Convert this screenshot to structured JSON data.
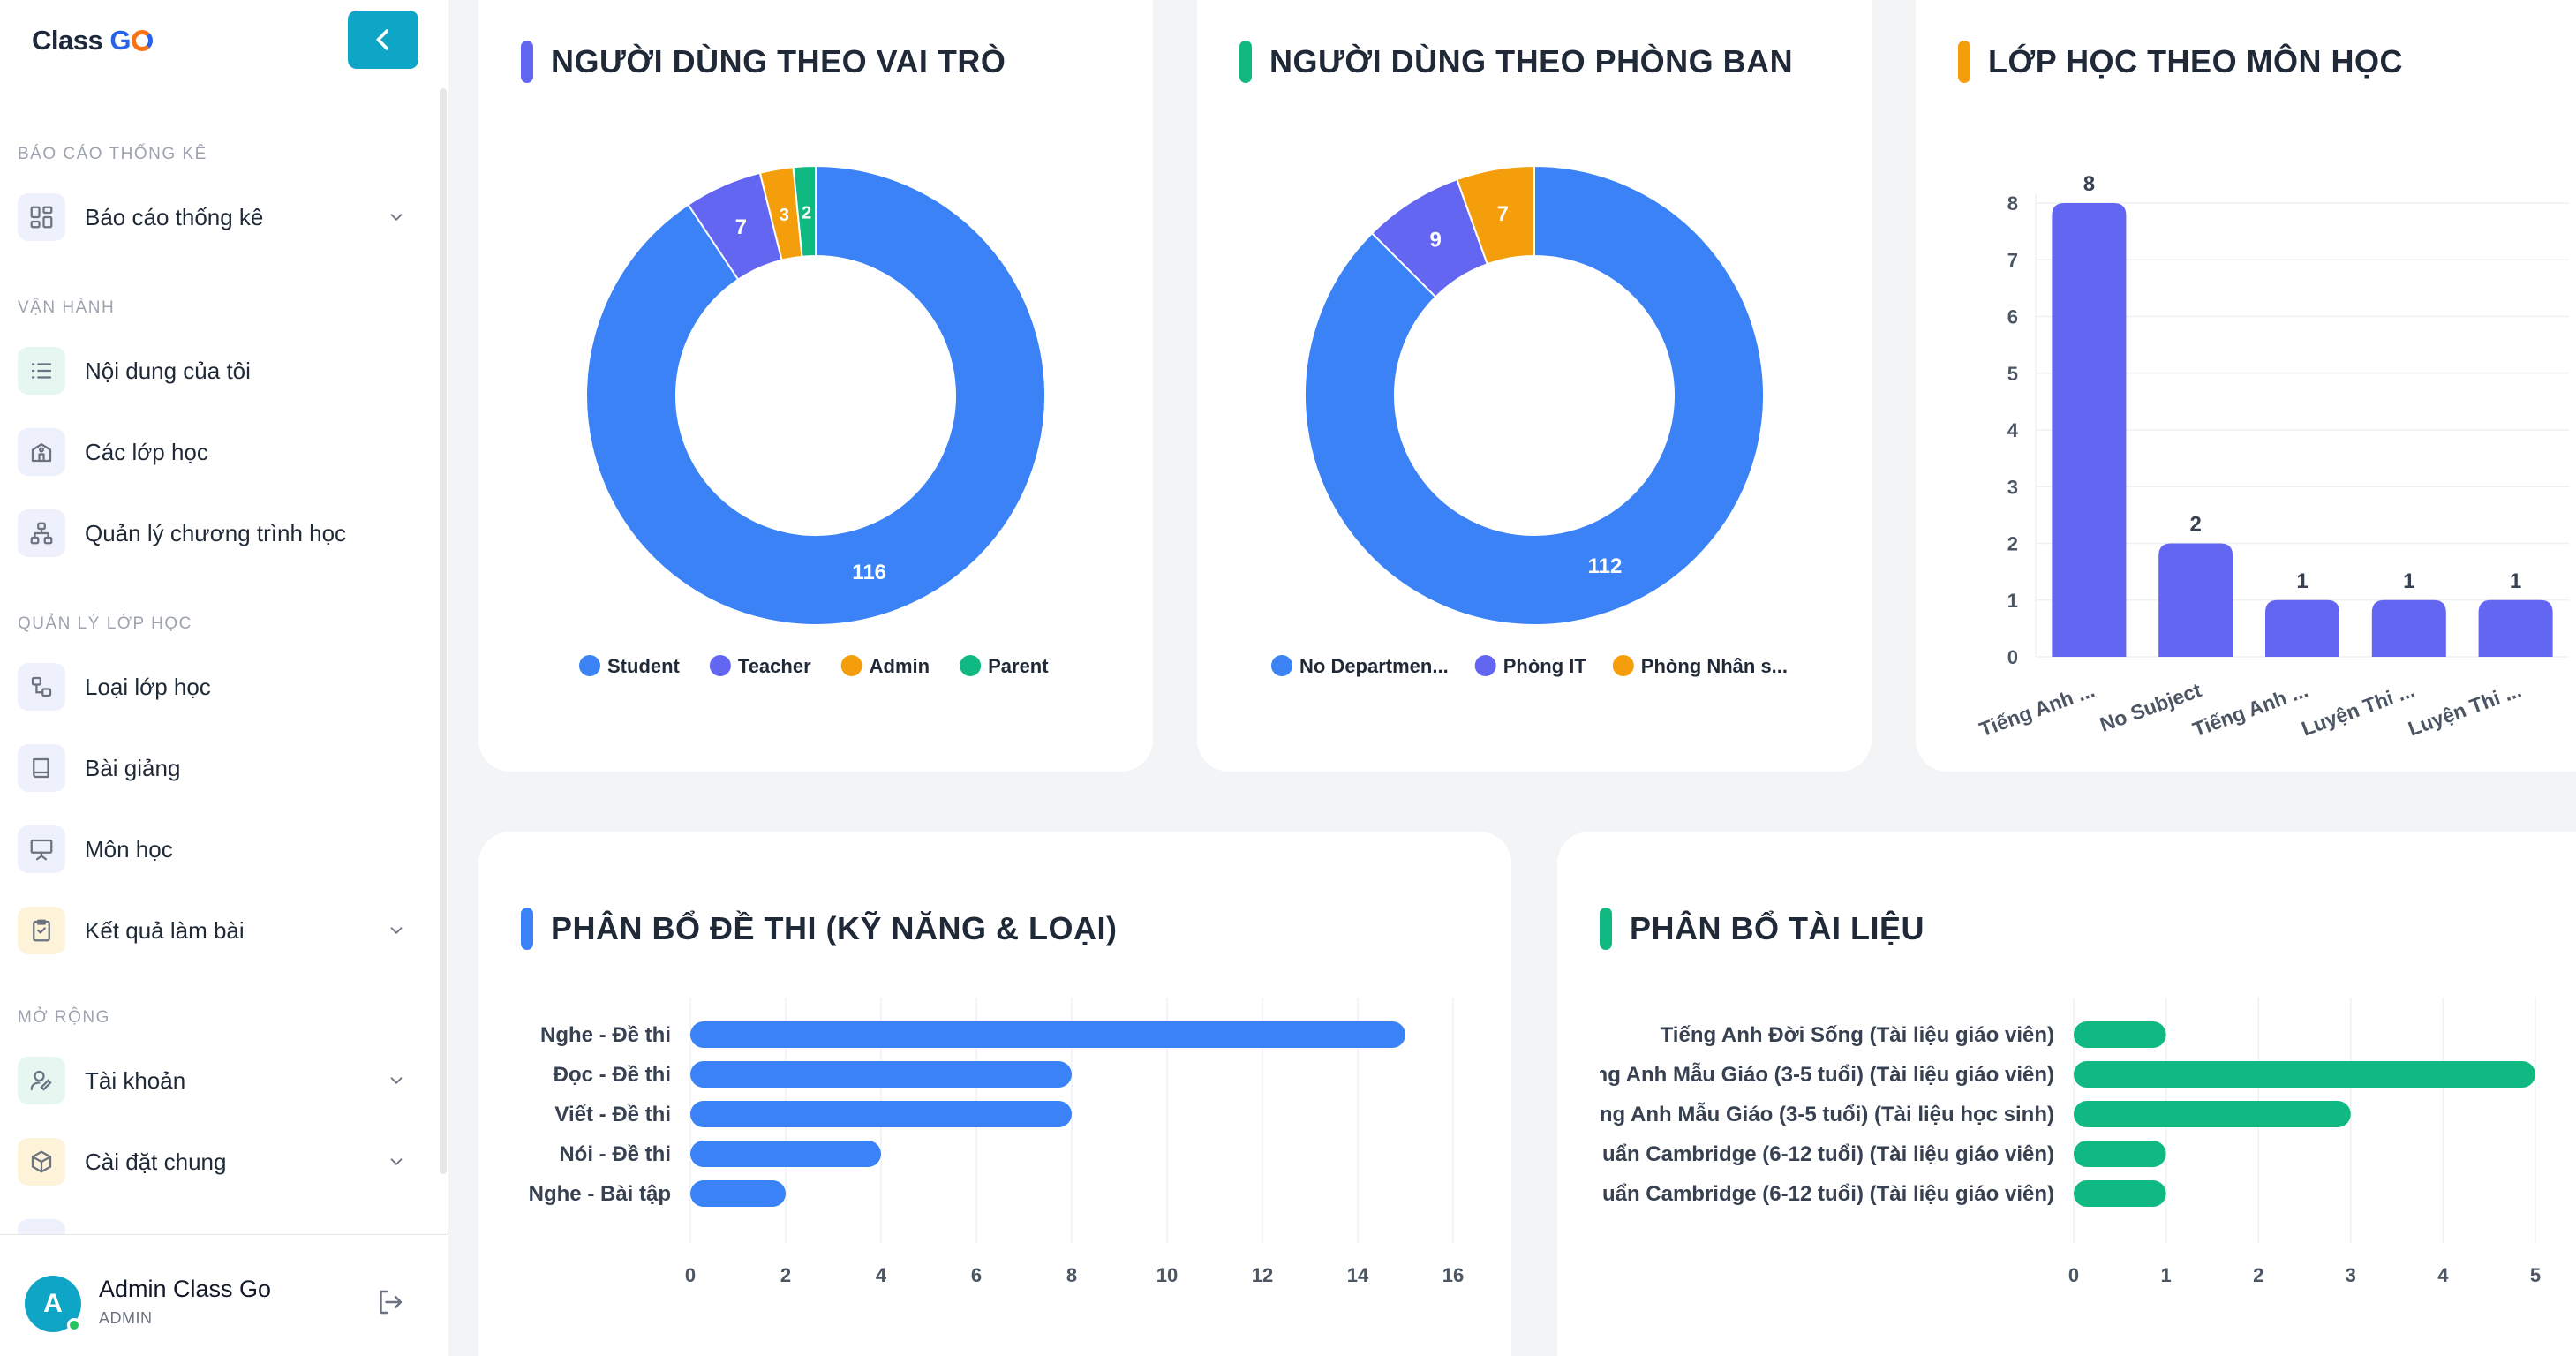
{
  "app": {
    "logo_text": "Class ",
    "logo_accent": "G"
  },
  "sidebar": {
    "sections": [
      {
        "label": "BÁO CÁO THỐNG KÊ"
      },
      {
        "label": "VẬN HÀNH"
      },
      {
        "label": "QUẢN LÝ LỚP HỌC"
      },
      {
        "label": "MỞ RỘNG"
      }
    ],
    "items": [
      {
        "label": "Báo cáo thống kê",
        "icon": "dashboard-icon",
        "has_submenu": true
      },
      {
        "label": "Nội dung của tôi",
        "icon": "list-icon",
        "has_submenu": false
      },
      {
        "label": "Các lớp học",
        "icon": "school-icon",
        "has_submenu": false
      },
      {
        "label": "Quản lý chương trình học",
        "icon": "hierarchy-icon",
        "has_submenu": false
      },
      {
        "label": "Loại lớp học",
        "icon": "class-type-icon",
        "has_submenu": false
      },
      {
        "label": "Bài giảng",
        "icon": "book-icon",
        "has_submenu": false
      },
      {
        "label": "Môn học",
        "icon": "presentation-icon",
        "has_submenu": false
      },
      {
        "label": "Kết quả làm bài",
        "icon": "checklist-icon",
        "has_submenu": true
      },
      {
        "label": "Tài khoản",
        "icon": "user-edit-icon",
        "has_submenu": true
      },
      {
        "label": "Cài đặt chung",
        "icon": "box-icon",
        "has_submenu": true
      }
    ],
    "user": {
      "avatar_letter": "A",
      "name": "Admin Class Go",
      "role": "ADMIN"
    }
  },
  "cards": {
    "role": {
      "title": "NGƯỜI DÙNG THEO VAI TRÒ",
      "accent": "#6366f1"
    },
    "dept": {
      "title": "NGƯỜI DÙNG THEO PHÒNG BAN",
      "accent": "#10b981"
    },
    "subject": {
      "title": "LỚP HỌC THEO MÔN HỌC",
      "accent": "#f59e0b"
    },
    "exam": {
      "title": "PHÂN BỔ ĐỀ THI (KỸ NĂNG & LOẠI)",
      "accent": "#3b82f6"
    },
    "docs": {
      "title": "PHÂN BỔ TÀI LIỆU",
      "accent": "#10b981"
    }
  },
  "chart_data": [
    {
      "type": "pie",
      "title": "NGƯỜI DÙNG THEO VAI TRÒ",
      "donut": true,
      "categories": [
        "Student",
        "Teacher",
        "Admin",
        "Parent"
      ],
      "values": [
        116,
        7,
        3,
        2
      ],
      "colors": [
        "#3b82f6",
        "#6366f1",
        "#f59e0b",
        "#10b981"
      ],
      "legend_position": "bottom"
    },
    {
      "type": "pie",
      "title": "NGƯỜI DÙNG THEO PHÒNG BAN",
      "donut": true,
      "categories": [
        "No Departmen...",
        "Phòng IT",
        "Phòng Nhân s..."
      ],
      "values": [
        112,
        9,
        7
      ],
      "colors": [
        "#3b82f6",
        "#6366f1",
        "#f59e0b"
      ],
      "legend_position": "bottom"
    },
    {
      "type": "bar",
      "title": "LỚP HỌC THEO MÔN HỌC",
      "categories": [
        "Tiếng Anh ...",
        "No Subject",
        "Tiếng Anh ...",
        "Luyện Thi ...",
        "Luyện Thi ..."
      ],
      "values": [
        8,
        2,
        1,
        1,
        1
      ],
      "color": "#6366f1",
      "ylim": [
        0,
        8
      ],
      "yticks": [
        0,
        1,
        2,
        3,
        4,
        5,
        6,
        7,
        8
      ],
      "grid": true
    },
    {
      "type": "bar",
      "orientation": "horizontal",
      "title": "PHÂN BỔ ĐỀ THI (KỸ NĂNG & LOẠI)",
      "categories": [
        "Nghe - Đề thi",
        "Đọc - Đề thi",
        "Viết - Đề thi",
        "Nói - Đề thi",
        "Nghe - Bài tập"
      ],
      "values": [
        15,
        8,
        8,
        4,
        2
      ],
      "color": "#3b82f6",
      "xlim": [
        0,
        16
      ],
      "xticks": [
        0,
        2,
        4,
        6,
        8,
        10,
        12,
        14,
        16
      ],
      "grid": true
    },
    {
      "type": "bar",
      "orientation": "horizontal",
      "title": "PHÂN BỔ TÀI LIỆU",
      "categories": [
        "Tiếng Anh Đời Sống (Tài liệu giáo viên)",
        "ng Anh Mẫu Giáo (3-5 tuổi) (Tài liệu giáo viên)",
        "ếng Anh Mẫu Giáo (3-5 tuổi) (Tài liệu học sinh)",
        "uẩn Cambridge (6-12 tuổi) (Tài liệu giáo viên)",
        "uẩn Cambridge (6-12 tuổi) (Tài liệu giáo viên)"
      ],
      "values": [
        1,
        5,
        3,
        1,
        1
      ],
      "color": "#10b981",
      "xlim": [
        0,
        5
      ],
      "xticks": [
        0,
        1,
        2,
        3,
        4,
        5
      ],
      "grid": true
    }
  ]
}
